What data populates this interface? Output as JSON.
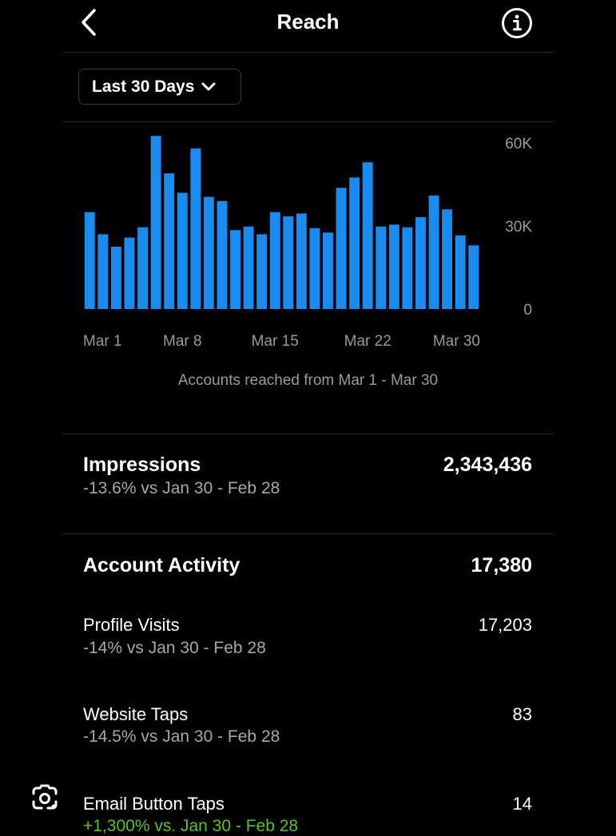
{
  "header": {
    "title": "Reach",
    "back_icon": "chevron-left-icon",
    "info_icon": "info-icon"
  },
  "filter": {
    "label": "Last 30 Days",
    "icon": "chevron-down-icon"
  },
  "chart_data": {
    "type": "bar",
    "categories": [
      "Mar 1",
      "Mar 2",
      "Mar 3",
      "Mar 4",
      "Mar 5",
      "Mar 6",
      "Mar 7",
      "Mar 8",
      "Mar 9",
      "Mar 10",
      "Mar 11",
      "Mar 12",
      "Mar 13",
      "Mar 14",
      "Mar 15",
      "Mar 16",
      "Mar 17",
      "Mar 18",
      "Mar 19",
      "Mar 20",
      "Mar 21",
      "Mar 22",
      "Mar 23",
      "Mar 24",
      "Mar 25",
      "Mar 26",
      "Mar 27",
      "Mar 28",
      "Mar 29",
      "Mar 30"
    ],
    "values": [
      35000,
      27000,
      22500,
      25800,
      29500,
      62500,
      49000,
      42000,
      58000,
      40500,
      39000,
      28500,
      29800,
      27000,
      35000,
      33500,
      34500,
      29200,
      27600,
      43800,
      47500,
      53000,
      29800,
      30500,
      29500,
      33200,
      41000,
      36000,
      26600,
      23000
    ],
    "xticks": [
      "Mar 1",
      "Mar 8",
      "Mar 15",
      "Mar 22",
      "Mar 30"
    ],
    "yticks": [
      "60K",
      "30K",
      "0"
    ],
    "ylim": [
      0,
      60000
    ],
    "color": "#1a8cf0",
    "grid": false
  },
  "caption": "Accounts reached from Mar 1 - Mar 30",
  "impressions": {
    "label": "Impressions",
    "value": "2,343,436",
    "change": "-13.6% vs Jan 30 - Feb 28"
  },
  "account_activity": {
    "label": "Account Activity",
    "value": "17,380",
    "items": [
      {
        "label": "Profile Visits",
        "value": "17,203",
        "change": "-14% vs Jan 30 - Feb 28"
      },
      {
        "label": "Website Taps",
        "value": "83",
        "change": "-14.5% vs Jan 30 - Feb 28"
      },
      {
        "label": "Email Button Taps",
        "value": "14",
        "change": "+1,300% vs. Jan 30 - Feb 28"
      }
    ]
  },
  "overlay": {
    "lens_icon": "google-lens-icon"
  },
  "colors": {
    "background": "#000000",
    "bar": "#1a8cf0",
    "muted": "#9a9a9a",
    "positive": "#58c322"
  }
}
